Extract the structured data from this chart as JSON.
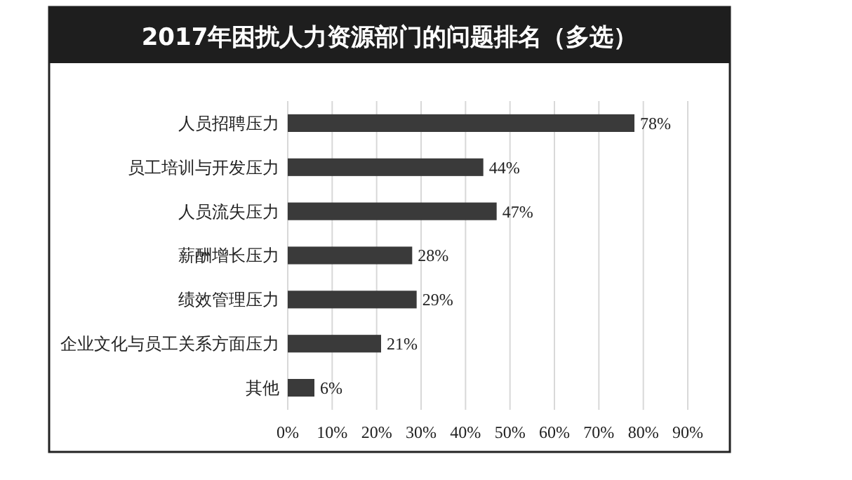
{
  "chart_data": {
    "type": "bar",
    "orientation": "horizontal",
    "title": "2017年困扰人力资源部门的问题排名（多选）",
    "categories": [
      "人员招聘压力",
      "员工培训与开发压力",
      "人员流失压力",
      "薪酬增长压力",
      "绩效管理压力",
      "企业文化与员工关系方面压力",
      "其他"
    ],
    "values": [
      78,
      44,
      47,
      28,
      29,
      21,
      6
    ],
    "value_labels": [
      "78%",
      "44%",
      "47%",
      "28%",
      "29%",
      "21%",
      "6%"
    ],
    "color": "#3a3a3a",
    "xlim": [
      0,
      90
    ],
    "xticks": [
      {
        "value": 0,
        "label": "0%"
      },
      {
        "value": 10,
        "label": "10%"
      },
      {
        "value": 20,
        "label": "20%"
      },
      {
        "value": 30,
        "label": "30%"
      },
      {
        "value": 40,
        "label": "40%"
      },
      {
        "value": 50,
        "label": "50%"
      },
      {
        "value": 60,
        "label": "60%"
      },
      {
        "value": 70,
        "label": "70%"
      },
      {
        "value": 80,
        "label": "80%"
      },
      {
        "value": 90,
        "label": "90%"
      }
    ],
    "grid": "x"
  }
}
